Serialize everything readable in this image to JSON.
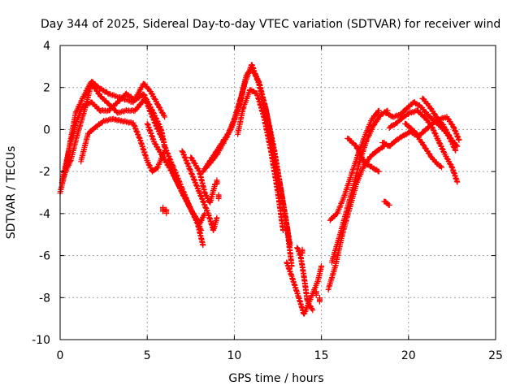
{
  "chart_data": {
    "type": "scatter",
    "title": "Day 344 of 2025, Sidereal Day-to-day VTEC variation (SDTVAR) for receiver wind",
    "xlabel": "GPS time / hours",
    "ylabel": "SDTVAR / TECUs",
    "xlim": [
      0,
      25
    ],
    "ylim": [
      -10,
      4
    ],
    "xticks": [
      0,
      5,
      10,
      15,
      20,
      25
    ],
    "yticks": [
      -10,
      -8,
      -6,
      -4,
      -2,
      0,
      2,
      4
    ],
    "grid": true,
    "marker": "+",
    "series": [
      {
        "name": "SDTVAR",
        "color": "#ff0000",
        "tracks": [
          [
            [
              0.0,
              -3.0
            ],
            [
              0.3,
              -2.0
            ],
            [
              0.6,
              -0.5
            ],
            [
              0.9,
              0.8
            ],
            [
              1.3,
              1.5
            ],
            [
              1.8,
              2.3
            ],
            [
              2.2,
              2.0
            ],
            [
              2.8,
              1.7
            ],
            [
              3.5,
              1.5
            ],
            [
              4.2,
              1.3
            ],
            [
              4.8,
              2.2
            ],
            [
              5.2,
              1.8
            ],
            [
              5.6,
              1.2
            ],
            [
              6.0,
              0.6
            ]
          ],
          [
            [
              0.1,
              -2.5
            ],
            [
              0.5,
              -1.0
            ],
            [
              0.9,
              0.3
            ],
            [
              1.3,
              1.1
            ],
            [
              1.8,
              1.3
            ],
            [
              2.3,
              0.9
            ],
            [
              2.8,
              0.9
            ],
            [
              3.3,
              1.3
            ],
            [
              3.8,
              1.7
            ],
            [
              4.3,
              1.4
            ],
            [
              4.8,
              1.7
            ],
            [
              5.1,
              1.0
            ],
            [
              5.5,
              0.2
            ],
            [
              5.9,
              -0.5
            ]
          ],
          [
            [
              0.2,
              -2.2
            ],
            [
              0.6,
              -1.5
            ],
            [
              1.0,
              -0.2
            ],
            [
              1.4,
              0.9
            ],
            [
              1.8,
              2.2
            ],
            [
              2.3,
              1.6
            ],
            [
              2.8,
              1.2
            ],
            [
              3.3,
              0.8
            ],
            [
              3.8,
              0.9
            ],
            [
              4.3,
              0.9
            ],
            [
              4.9,
              1.5
            ],
            [
              5.3,
              0.9
            ],
            [
              5.8,
              0.0
            ],
            [
              6.0,
              -0.8
            ]
          ],
          [
            [
              1.2,
              -1.5
            ],
            [
              1.6,
              -0.2
            ],
            [
              2.0,
              0.1
            ],
            [
              2.5,
              0.4
            ],
            [
              3.0,
              0.5
            ],
            [
              3.6,
              0.4
            ],
            [
              4.2,
              0.3
            ],
            [
              4.6,
              -0.5
            ],
            [
              5.0,
              -1.5
            ],
            [
              5.3,
              -2.0
            ],
            [
              5.6,
              -1.8
            ],
            [
              6.0,
              -1.0
            ]
          ],
          [
            [
              5.0,
              0.3
            ],
            [
              5.4,
              -0.6
            ],
            [
              5.9,
              -1.3
            ],
            [
              6.4,
              -2.0
            ],
            [
              6.9,
              -2.8
            ],
            [
              7.4,
              -3.6
            ],
            [
              7.9,
              -4.5
            ],
            [
              8.2,
              -5.5
            ]
          ],
          [
            [
              6.2,
              -1.5
            ],
            [
              6.6,
              -2.3
            ],
            [
              7.0,
              -3.0
            ],
            [
              7.5,
              -3.8
            ],
            [
              8.0,
              -4.5
            ],
            [
              8.3,
              -4.0
            ]
          ],
          [
            [
              6.0,
              -0.8
            ],
            [
              6.5,
              -1.8
            ],
            [
              7.0,
              -2.8
            ],
            [
              7.5,
              -3.8
            ],
            [
              7.8,
              -4.2
            ],
            [
              8.1,
              -4.8
            ]
          ],
          [
            [
              7.0,
              -1.0
            ],
            [
              7.5,
              -2.0
            ],
            [
              8.0,
              -3.0
            ],
            [
              8.5,
              -4.0
            ],
            [
              8.8,
              -4.8
            ],
            [
              9.0,
              -4.2
            ]
          ],
          [
            [
              7.5,
              -1.3
            ],
            [
              8.0,
              -2.0
            ],
            [
              8.3,
              -3.0
            ],
            [
              8.6,
              -3.5
            ],
            [
              8.9,
              -2.6
            ]
          ],
          [
            [
              8.2,
              -2.0
            ],
            [
              8.6,
              -1.5
            ],
            [
              9.0,
              -1.0
            ],
            [
              9.4,
              -0.5
            ],
            [
              9.8,
              0.0
            ],
            [
              10.2,
              0.9
            ],
            [
              10.6,
              2.2
            ],
            [
              11.0,
              3.1
            ],
            [
              11.4,
              2.2
            ],
            [
              11.8,
              1.0
            ],
            [
              12.2,
              -0.8
            ],
            [
              12.6,
              -2.5
            ],
            [
              13.0,
              -4.5
            ],
            [
              13.3,
              -6.5
            ]
          ],
          [
            [
              8.4,
              -1.8
            ],
            [
              9.0,
              -1.2
            ],
            [
              9.6,
              -0.3
            ],
            [
              10.0,
              0.5
            ],
            [
              10.4,
              1.6
            ],
            [
              10.7,
              2.6
            ],
            [
              11.0,
              2.9
            ],
            [
              11.4,
              2.3
            ],
            [
              11.8,
              1.0
            ],
            [
              12.3,
              -1.0
            ],
            [
              12.8,
              -3.5
            ],
            [
              13.2,
              -5.5
            ]
          ],
          [
            [
              10.2,
              -0.2
            ],
            [
              10.5,
              1.0
            ],
            [
              10.9,
              1.9
            ],
            [
              11.3,
              1.7
            ],
            [
              11.7,
              0.6
            ],
            [
              12.1,
              -1.0
            ],
            [
              12.5,
              -3.0
            ],
            [
              12.8,
              -4.8
            ]
          ],
          [
            [
              13.0,
              -6.3
            ],
            [
              13.3,
              -7.0
            ],
            [
              13.7,
              -8.0
            ],
            [
              14.0,
              -8.8
            ],
            [
              14.4,
              -8.0
            ],
            [
              14.8,
              -7.2
            ],
            [
              15.0,
              -6.5
            ]
          ],
          [
            [
              13.6,
              -5.6
            ],
            [
              13.8,
              -6.0
            ],
            [
              14.0,
              -7.0
            ],
            [
              14.2,
              -8.2
            ],
            [
              14.5,
              -8.6
            ]
          ],
          [
            [
              15.4,
              -7.6
            ],
            [
              15.8,
              -6.5
            ],
            [
              16.2,
              -5.0
            ],
            [
              16.6,
              -3.8
            ],
            [
              17.0,
              -2.6
            ],
            [
              17.4,
              -1.8
            ],
            [
              17.8,
              -1.3
            ],
            [
              18.2,
              -1.0
            ],
            [
              18.6,
              -0.8
            ]
          ],
          [
            [
              15.6,
              -6.3
            ],
            [
              16.0,
              -5.2
            ],
            [
              16.4,
              -4.0
            ],
            [
              16.8,
              -2.8
            ],
            [
              17.2,
              -1.5
            ],
            [
              17.6,
              -0.5
            ],
            [
              18.0,
              0.2
            ],
            [
              18.4,
              0.7
            ],
            [
              18.8,
              0.9
            ]
          ],
          [
            [
              15.5,
              -4.3
            ],
            [
              15.9,
              -4.0
            ],
            [
              16.3,
              -3.2
            ],
            [
              16.7,
              -2.2
            ],
            [
              17.1,
              -1.2
            ],
            [
              17.5,
              -0.3
            ],
            [
              17.9,
              0.5
            ],
            [
              18.3,
              0.9
            ]
          ],
          [
            [
              16.5,
              -0.4
            ],
            [
              17.0,
              -0.8
            ],
            [
              17.5,
              -1.6
            ],
            [
              17.9,
              -1.8
            ],
            [
              18.3,
              -2.0
            ]
          ],
          [
            [
              18.6,
              -3.4
            ],
            [
              18.9,
              -3.6
            ]
          ],
          [
            [
              18.7,
              0.8
            ],
            [
              19.1,
              0.6
            ],
            [
              19.5,
              0.7
            ],
            [
              19.9,
              1.0
            ],
            [
              20.3,
              1.3
            ],
            [
              20.7,
              1.1
            ],
            [
              21.1,
              0.7
            ],
            [
              21.5,
              0.4
            ],
            [
              21.9,
              0.1
            ],
            [
              22.3,
              -0.3
            ],
            [
              22.7,
              -1.0
            ]
          ],
          [
            [
              18.9,
              0.1
            ],
            [
              19.3,
              0.3
            ],
            [
              19.7,
              0.6
            ],
            [
              20.1,
              0.8
            ],
            [
              20.5,
              0.9
            ],
            [
              20.9,
              0.6
            ],
            [
              21.3,
              0.2
            ],
            [
              21.7,
              -0.5
            ],
            [
              22.1,
              -1.2
            ],
            [
              22.5,
              -1.8
            ],
            [
              22.8,
              -2.5
            ]
          ],
          [
            [
              18.5,
              -0.6
            ],
            [
              18.9,
              -0.8
            ],
            [
              19.3,
              -0.5
            ],
            [
              19.7,
              -0.3
            ],
            [
              20.1,
              -0.1
            ],
            [
              20.5,
              -0.3
            ],
            [
              20.9,
              -0.8
            ],
            [
              21.3,
              -1.3
            ],
            [
              21.6,
              -1.6
            ],
            [
              21.9,
              -1.8
            ]
          ],
          [
            [
              20.8,
              1.5
            ],
            [
              21.2,
              1.1
            ],
            [
              21.6,
              0.6
            ],
            [
              22.0,
              0.2
            ],
            [
              22.4,
              -0.4
            ],
            [
              22.8,
              -0.8
            ]
          ],
          [
            [
              19.8,
              0.3
            ],
            [
              20.2,
              0.0
            ],
            [
              20.6,
              -0.3
            ],
            [
              21.0,
              0.0
            ],
            [
              21.4,
              0.3
            ],
            [
              21.8,
              0.5
            ],
            [
              22.2,
              0.6
            ],
            [
              22.6,
              0.1
            ],
            [
              22.9,
              -0.5
            ]
          ]
        ],
        "points": [
          [
            5.9,
            -3.8
          ],
          [
            6.1,
            -3.9
          ],
          [
            9.0,
            -2.5
          ],
          [
            9.1,
            -3.2
          ],
          [
            14.7,
            -7.8
          ],
          [
            14.9,
            -8.1
          ],
          [
            13.9,
            -5.8
          ]
        ]
      }
    ]
  }
}
